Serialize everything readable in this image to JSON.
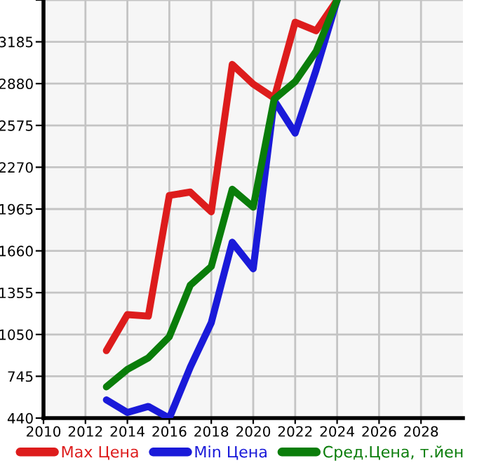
{
  "chart_data": {
    "type": "line",
    "x": [
      2013,
      2014,
      2015,
      2016,
      2017,
      2018,
      2019,
      2020,
      2021,
      2022,
      2023,
      2024
    ],
    "series": [
      {
        "name": "Max Цена",
        "color": "#dd1c1c",
        "values": [
          932,
          1195,
          1184,
          2064,
          2089,
          1945,
          3020,
          2877,
          2775,
          3328,
          3266,
          3490
        ]
      },
      {
        "name": "Min Цена",
        "color": "#1a1ad9",
        "values": [
          573,
          481,
          525,
          440,
          812,
          1136,
          1723,
          1529,
          2757,
          2519,
          2980,
          3490
        ]
      },
      {
        "name": "Сред.Цена, т.йен",
        "color": "#0a7d0a",
        "values": [
          668,
          795,
          880,
          1034,
          1410,
          1546,
          2109,
          1979,
          2767,
          2894,
          3116,
          3490
        ]
      }
    ],
    "xlim": [
      2010,
      2030
    ],
    "xticks": [
      2010,
      2012,
      2014,
      2016,
      2018,
      2020,
      2022,
      2024,
      2026,
      2028
    ],
    "ylim": [
      440,
      3490
    ],
    "yticks": [
      440,
      745,
      1050,
      1355,
      1660,
      1965,
      2270,
      2575,
      2880,
      3185,
      {
        "value": 3490,
        "label": null
      }
    ],
    "grid": true,
    "legend": "bottom",
    "marker": "none",
    "line_style": "solid"
  }
}
